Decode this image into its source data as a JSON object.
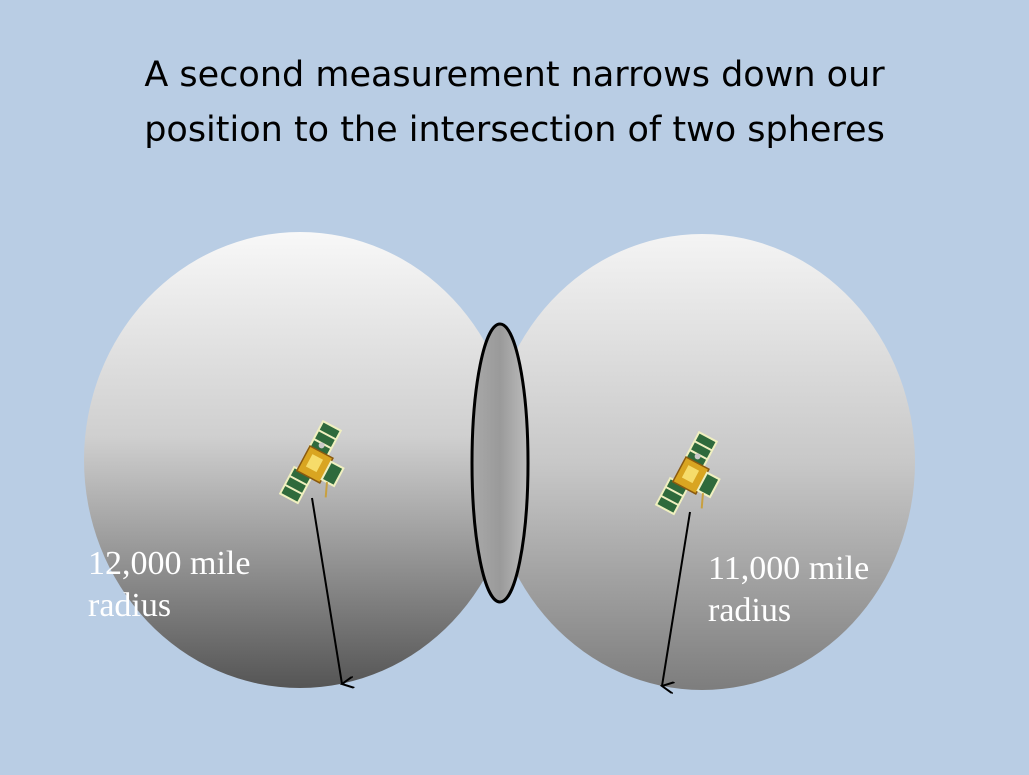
{
  "title": {
    "line1": "A second measurement narrows down our",
    "line2": "position to the intersection of two spheres"
  },
  "spheres": [
    {
      "radius_label_line1": "12,000 mile",
      "radius_label_line2": "radius"
    },
    {
      "radius_label_line1": "11,000 mile",
      "radius_label_line2": "radius"
    }
  ],
  "colors": {
    "background": "#b9cde4",
    "sphere_top": "#f7f7f7",
    "sphere_bottom": "#5a5a5a",
    "label": "#ffffff",
    "arrow": "#000000",
    "intersection_outline": "#000000"
  },
  "icons": [
    "satellite-icon",
    "satellite-icon"
  ]
}
